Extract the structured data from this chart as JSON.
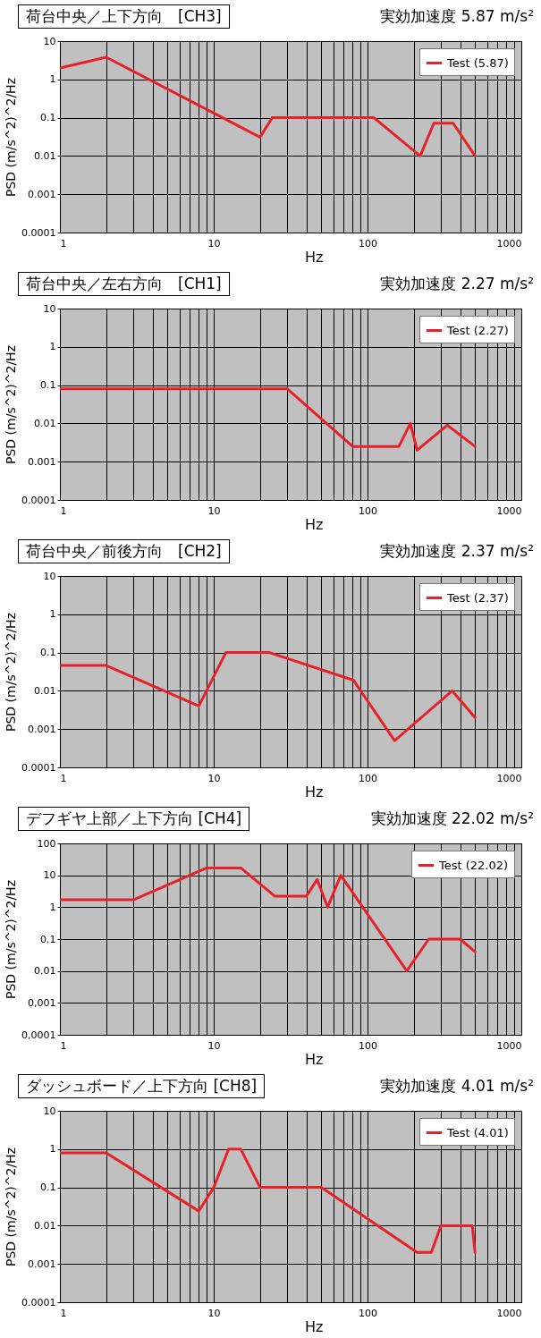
{
  "chart_data": [
    {
      "type": "line",
      "title": "荷台中央／上下方向　[CH3]",
      "subtitle": "実効加速度 5.87 m/s²",
      "xlabel": "Hz",
      "ylabel": "PSD (m/s^2)^2/Hz",
      "log": "xy",
      "grid": true,
      "legend": "top right",
      "xlim": [
        1,
        1000
      ],
      "ylim": [
        0.0001,
        10
      ],
      "xticks": [
        1,
        {
          "value": 2,
          "label": null
        },
        {
          "value": 3,
          "label": null
        },
        {
          "value": 4,
          "label": null
        },
        {
          "value": 5,
          "label": null
        },
        {
          "value": 6,
          "label": null
        },
        {
          "value": 7,
          "label": null
        },
        {
          "value": 8,
          "label": null
        },
        {
          "value": 9,
          "label": null
        },
        10,
        {
          "value": 20,
          "label": null
        },
        {
          "value": 30,
          "label": null
        },
        {
          "value": 40,
          "label": null
        },
        {
          "value": 50,
          "label": null
        },
        {
          "value": 60,
          "label": null
        },
        {
          "value": 70,
          "label": null
        },
        {
          "value": 80,
          "label": null
        },
        {
          "value": 90,
          "label": null
        },
        100,
        {
          "value": 200,
          "label": null
        },
        {
          "value": 300,
          "label": null
        },
        {
          "value": 400,
          "label": null
        },
        {
          "value": 500,
          "label": null
        },
        {
          "value": 600,
          "label": null
        },
        {
          "value": 700,
          "label": null
        },
        {
          "value": 800,
          "label": null
        },
        {
          "value": 900,
          "label": null
        },
        1000
      ],
      "yticks": [
        0.0001,
        0.001,
        0.01,
        0.1,
        1,
        10
      ],
      "series": [
        {
          "name": "Test (5.87)",
          "color": "#e8202a",
          "x": [
            1,
            2,
            20,
            24,
            110,
            220,
            270,
            360,
            500
          ],
          "values": [
            2,
            3.8,
            0.031,
            0.1,
            0.1,
            0.01,
            0.072,
            0.072,
            0.01
          ]
        }
      ]
    },
    {
      "type": "line",
      "title": "荷台中央／左右方向　[CH1]",
      "subtitle": "実効加速度 2.27 m/s²",
      "xlabel": "Hz",
      "ylabel": "PSD (m/s^2)^2/Hz",
      "log": "xy",
      "grid": true,
      "legend": "top right",
      "xlim": [
        1,
        1000
      ],
      "ylim": [
        0.0001,
        10
      ],
      "xticks": [
        1,
        {
          "value": 2,
          "label": null
        },
        {
          "value": 3,
          "label": null
        },
        {
          "value": 4,
          "label": null
        },
        {
          "value": 5,
          "label": null
        },
        {
          "value": 6,
          "label": null
        },
        {
          "value": 7,
          "label": null
        },
        {
          "value": 8,
          "label": null
        },
        {
          "value": 9,
          "label": null
        },
        10,
        {
          "value": 20,
          "label": null
        },
        {
          "value": 30,
          "label": null
        },
        {
          "value": 40,
          "label": null
        },
        {
          "value": 50,
          "label": null
        },
        {
          "value": 60,
          "label": null
        },
        {
          "value": 70,
          "label": null
        },
        {
          "value": 80,
          "label": null
        },
        {
          "value": 90,
          "label": null
        },
        100,
        {
          "value": 200,
          "label": null
        },
        {
          "value": 300,
          "label": null
        },
        {
          "value": 400,
          "label": null
        },
        {
          "value": 500,
          "label": null
        },
        {
          "value": 600,
          "label": null
        },
        {
          "value": 700,
          "label": null
        },
        {
          "value": 800,
          "label": null
        },
        {
          "value": 900,
          "label": null
        },
        1000
      ],
      "yticks": [
        0.0001,
        0.001,
        0.01,
        0.1,
        1,
        10
      ],
      "series": [
        {
          "name": "Test (2.27)",
          "color": "#e8202a",
          "x": [
            1,
            30,
            80,
            160,
            190,
            210,
            330,
            500
          ],
          "values": [
            0.08,
            0.08,
            0.0025,
            0.0025,
            0.01,
            0.002,
            0.009,
            0.0025
          ]
        }
      ]
    },
    {
      "type": "line",
      "title": "荷台中央／前後方向　[CH2]",
      "subtitle": "実効加速度 2.37 m/s²",
      "xlabel": "Hz",
      "ylabel": "PSD (m/s^2)^2/Hz",
      "log": "xy",
      "grid": true,
      "legend": "top right",
      "xlim": [
        1,
        1000
      ],
      "ylim": [
        0.0001,
        10
      ],
      "xticks": [
        1,
        {
          "value": 2,
          "label": null
        },
        {
          "value": 3,
          "label": null
        },
        {
          "value": 4,
          "label": null
        },
        {
          "value": 5,
          "label": null
        },
        {
          "value": 6,
          "label": null
        },
        {
          "value": 7,
          "label": null
        },
        {
          "value": 8,
          "label": null
        },
        {
          "value": 9,
          "label": null
        },
        10,
        {
          "value": 20,
          "label": null
        },
        {
          "value": 30,
          "label": null
        },
        {
          "value": 40,
          "label": null
        },
        {
          "value": 50,
          "label": null
        },
        {
          "value": 60,
          "label": null
        },
        {
          "value": 70,
          "label": null
        },
        {
          "value": 80,
          "label": null
        },
        {
          "value": 90,
          "label": null
        },
        100,
        {
          "value": 200,
          "label": null
        },
        {
          "value": 300,
          "label": null
        },
        {
          "value": 400,
          "label": null
        },
        {
          "value": 500,
          "label": null
        },
        {
          "value": 600,
          "label": null
        },
        {
          "value": 700,
          "label": null
        },
        {
          "value": 800,
          "label": null
        },
        {
          "value": 900,
          "label": null
        },
        1000
      ],
      "yticks": [
        0.0001,
        0.001,
        0.01,
        0.1,
        1,
        10
      ],
      "series": [
        {
          "name": "Test (2.37)",
          "color": "#e8202a",
          "x": [
            1,
            2,
            8,
            12,
            23,
            81,
            150,
            355,
            500
          ],
          "values": [
            0.046,
            0.046,
            0.004,
            0.1,
            0.1,
            0.019,
            0.0005,
            0.01,
            0.002
          ]
        }
      ]
    },
    {
      "type": "line",
      "title": "デフギヤ上部／上下方向 [CH4]",
      "subtitle": "実効加速度 22.02 m/s²",
      "xlabel": "Hz",
      "ylabel": "PSD (m/s^2)^2/Hz",
      "log": "xy",
      "grid": true,
      "legend": "top right",
      "xlim": [
        1,
        1000
      ],
      "ylim": [
        0.0001,
        100
      ],
      "xticks": [
        1,
        {
          "value": 2,
          "label": null
        },
        {
          "value": 3,
          "label": null
        },
        {
          "value": 4,
          "label": null
        },
        {
          "value": 5,
          "label": null
        },
        {
          "value": 6,
          "label": null
        },
        {
          "value": 7,
          "label": null
        },
        {
          "value": 8,
          "label": null
        },
        {
          "value": 9,
          "label": null
        },
        10,
        {
          "value": 20,
          "label": null
        },
        {
          "value": 30,
          "label": null
        },
        {
          "value": 40,
          "label": null
        },
        {
          "value": 50,
          "label": null
        },
        {
          "value": 60,
          "label": null
        },
        {
          "value": 70,
          "label": null
        },
        {
          "value": 80,
          "label": null
        },
        {
          "value": 90,
          "label": null
        },
        100,
        {
          "value": 200,
          "label": null
        },
        {
          "value": 300,
          "label": null
        },
        {
          "value": 400,
          "label": null
        },
        {
          "value": 500,
          "label": null
        },
        {
          "value": 600,
          "label": null
        },
        {
          "value": 700,
          "label": null
        },
        {
          "value": 800,
          "label": null
        },
        {
          "value": 900,
          "label": null
        },
        1000
      ],
      "yticks": [
        {
          "value": 0.0001,
          "label": "0,0001"
        },
        {
          "value": 0.001,
          "label": "0,001"
        },
        0.01,
        0.1,
        1,
        10,
        100
      ],
      "series": [
        {
          "name": "Test (22.02)",
          "color": "#e8202a",
          "x": [
            1,
            3,
            9,
            15,
            25,
            40,
            47,
            55,
            67,
            180,
            250,
            400,
            500
          ],
          "values": [
            1.7,
            1.7,
            17,
            17,
            2.2,
            2.2,
            7.4,
            1,
            10,
            0.01,
            0.1,
            0.1,
            0.04
          ]
        }
      ]
    },
    {
      "type": "line",
      "title": "ダッシュボード／上下方向 [CH8]",
      "subtitle": "実効加速度 4.01 m/s²",
      "xlabel": "Hz",
      "ylabel": "PSD (m/s^2)^2/Hz",
      "log": "xy",
      "grid": true,
      "legend": "top right",
      "xlim": [
        1,
        1000
      ],
      "ylim": [
        0.0001,
        10
      ],
      "xticks": [
        1,
        {
          "value": 2,
          "label": null
        },
        {
          "value": 3,
          "label": null
        },
        {
          "value": 4,
          "label": null
        },
        {
          "value": 5,
          "label": null
        },
        {
          "value": 6,
          "label": null
        },
        {
          "value": 7,
          "label": null
        },
        {
          "value": 8,
          "label": null
        },
        {
          "value": 9,
          "label": null
        },
        10,
        {
          "value": 20,
          "label": null
        },
        {
          "value": 30,
          "label": null
        },
        {
          "value": 40,
          "label": null
        },
        {
          "value": 50,
          "label": null
        },
        {
          "value": 60,
          "label": null
        },
        {
          "value": 70,
          "label": null
        },
        {
          "value": 80,
          "label": null
        },
        {
          "value": 90,
          "label": null
        },
        100,
        {
          "value": 200,
          "label": null
        },
        {
          "value": 300,
          "label": null
        },
        {
          "value": 400,
          "label": null
        },
        {
          "value": 500,
          "label": null
        },
        {
          "value": 600,
          "label": null
        },
        {
          "value": 700,
          "label": null
        },
        {
          "value": 800,
          "label": null
        },
        {
          "value": 900,
          "label": null
        },
        1000
      ],
      "yticks": [
        0.0001,
        0.001,
        0.01,
        0.1,
        1,
        10
      ],
      "series": [
        {
          "name": "Test (4.01)",
          "color": "#e8202a",
          "x": [
            1,
            2,
            8,
            10,
            12.5,
            15,
            20,
            50,
            210,
            260,
            300,
            480,
            500
          ],
          "values": [
            0.8,
            0.8,
            0.024,
            0.1,
            1,
            1,
            0.1,
            0.1,
            0.002,
            0.002,
            0.01,
            0.01,
            0.002
          ]
        }
      ]
    }
  ]
}
